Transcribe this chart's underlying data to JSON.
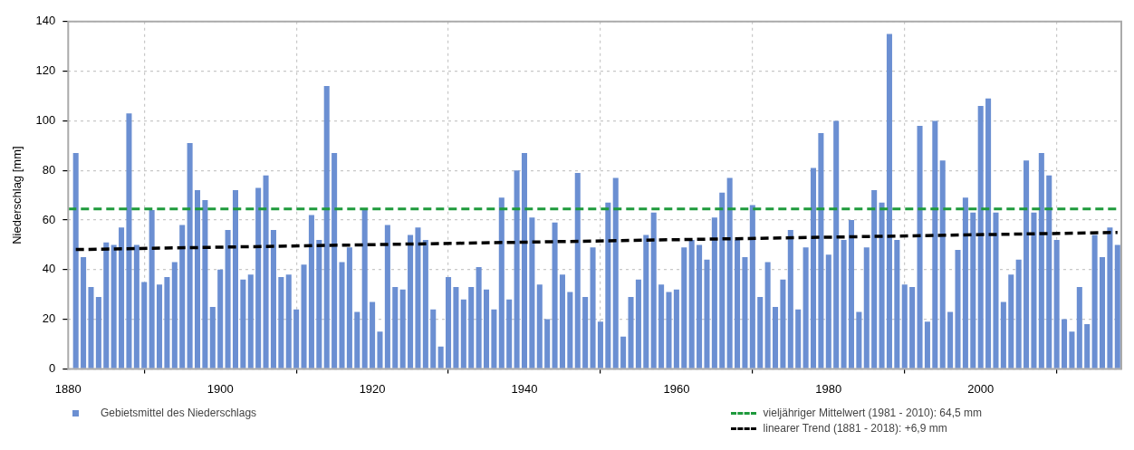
{
  "chart_data": {
    "type": "bar",
    "ylabel": "Niederschlag [mm]",
    "x": [
      1881,
      1882,
      1883,
      1884,
      1885,
      1886,
      1887,
      1888,
      1889,
      1890,
      1891,
      1892,
      1893,
      1894,
      1895,
      1896,
      1897,
      1898,
      1899,
      1900,
      1901,
      1902,
      1903,
      1904,
      1905,
      1906,
      1907,
      1908,
      1909,
      1910,
      1911,
      1912,
      1913,
      1914,
      1915,
      1916,
      1917,
      1918,
      1919,
      1920,
      1921,
      1922,
      1923,
      1924,
      1925,
      1926,
      1927,
      1928,
      1929,
      1930,
      1931,
      1932,
      1933,
      1934,
      1935,
      1936,
      1937,
      1938,
      1939,
      1940,
      1941,
      1942,
      1943,
      1944,
      1945,
      1946,
      1947,
      1948,
      1949,
      1950,
      1951,
      1952,
      1953,
      1954,
      1955,
      1956,
      1957,
      1958,
      1959,
      1960,
      1961,
      1962,
      1963,
      1964,
      1965,
      1966,
      1967,
      1968,
      1969,
      1970,
      1971,
      1972,
      1973,
      1974,
      1975,
      1976,
      1977,
      1978,
      1979,
      1980,
      1981,
      1982,
      1983,
      1984,
      1985,
      1986,
      1987,
      1988,
      1989,
      1990,
      1991,
      1992,
      1993,
      1994,
      1995,
      1996,
      1997,
      1998,
      1999,
      2000,
      2001,
      2002,
      2003,
      2004,
      2005,
      2006,
      2007,
      2008,
      2009,
      2010,
      2011,
      2012,
      2013,
      2014,
      2015,
      2016,
      2017,
      2018
    ],
    "series": [
      {
        "name": "Gebietsmittel des Niederschlags",
        "color": "#6b8fd2",
        "values": [
          87,
          45,
          33,
          29,
          51,
          50,
          57,
          103,
          50,
          35,
          64,
          34,
          37,
          43,
          58,
          91,
          72,
          68,
          25,
          40,
          56,
          72,
          36,
          38,
          73,
          78,
          56,
          37,
          38,
          24,
          42,
          62,
          52,
          114,
          87,
          43,
          49,
          23,
          64,
          27,
          15,
          58,
          33,
          32,
          54,
          57,
          52,
          24,
          9,
          37,
          33,
          28,
          33,
          41,
          32,
          24,
          69,
          28,
          80,
          87,
          61,
          34,
          20,
          59,
          38,
          31,
          79,
          29,
          49,
          19,
          67,
          77,
          13,
          29,
          36,
          54,
          63,
          34,
          31,
          32,
          49,
          52,
          50,
          44,
          61,
          71,
          77,
          52,
          45,
          66,
          29,
          43,
          25,
          36,
          56,
          24,
          49,
          81,
          95,
          46,
          100,
          52,
          60,
          23,
          49,
          72,
          67,
          135,
          52,
          34,
          33,
          98,
          19,
          100,
          84,
          23,
          48,
          69,
          63,
          106,
          109,
          63,
          27,
          38,
          44,
          84,
          63,
          87,
          78,
          52,
          20,
          15,
          33,
          18,
          54,
          45,
          57,
          50
        ]
      },
      {
        "type": "line",
        "name": "linearer Trend (1881 - 2018): +6,9 mm",
        "color": "#000000",
        "x": [
          1881,
          2018
        ],
        "values": [
          48.1,
          55.0
        ],
        "line_style": "dashed",
        "marker": "none"
      }
    ],
    "ref_lines": [
      {
        "axis": "y",
        "value": 64.5,
        "label": "vieljähriger Mittelwert (1981 - 2010): 64,5 mm",
        "color": "#1e9a3c",
        "line_style": "dashed"
      }
    ],
    "xlim": [
      1880,
      2018.5
    ],
    "xticks": [
      1880,
      1900,
      1920,
      1940,
      1960,
      1980,
      2000
    ],
    "ylim": [
      0,
      140
    ],
    "yticks": [
      0,
      20,
      40,
      60,
      80,
      100,
      120,
      140
    ],
    "grid": true,
    "legend": "bottom"
  }
}
